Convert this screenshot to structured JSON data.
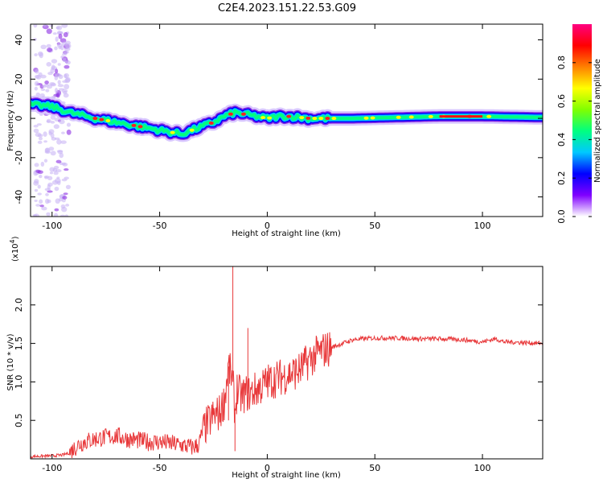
{
  "figure": {
    "title": "C2E4.2023.151.22.53.G09"
  },
  "chart_data": [
    {
      "type": "heatmap",
      "xlabel": "Height of straight line (km)",
      "ylabel": "Frequency (Hz)",
      "xlim": [
        -110,
        128
      ],
      "ylim": [
        -50,
        48
      ],
      "xticks": [
        -100,
        -50,
        0,
        50,
        100
      ],
      "yticks": [
        -40,
        -20,
        0,
        20,
        40
      ],
      "xtick_labels": [
        "-100",
        "-50",
        "0",
        "50",
        "100"
      ],
      "ytick_labels": [
        "-40",
        "-20",
        "0",
        "20",
        "40"
      ],
      "ridge": {
        "x": [
          -110,
          -100,
          -92,
          -80,
          -70,
          -60,
          -50,
          -45,
          -40,
          -35,
          -30,
          -25,
          -20,
          -15,
          -10,
          -5,
          0,
          5,
          10,
          20,
          40,
          60,
          80,
          100,
          128
        ],
        "y": [
          7,
          6,
          3,
          0,
          -2,
          -4,
          -6,
          -7,
          -8,
          -6,
          -4,
          -2,
          1,
          3,
          2,
          1,
          0,
          1,
          1,
          0,
          0,
          0.5,
          1,
          1,
          0.5
        ]
      },
      "scatter_region_x": [
        -108,
        -92
      ],
      "colorbar": {
        "label": "Normalized spectral amplitude",
        "range": [
          0,
          1
        ],
        "ticks": [
          0,
          0.2,
          0.4,
          0.6,
          0.8
        ],
        "tick_labels": [
          "0.0",
          "0.2",
          "0.4",
          "0.6",
          "0.8"
        ],
        "colors": [
          "#ffffff",
          "#8000ff",
          "#0000ff",
          "#00c8ff",
          "#00ff80",
          "#80ff00",
          "#ffff00",
          "#ff8000",
          "#ff0000",
          "#ff0080"
        ]
      }
    },
    {
      "type": "line",
      "xlabel": "Height of straight line (km)",
      "ylabel": "SNR (10 * v/v)",
      "y_multiplier": "(x10",
      "y_multiplier_exp": "4",
      "y_multiplier_close": ")",
      "xlim": [
        -110,
        128
      ],
      "ylim": [
        0,
        2.5
      ],
      "xticks": [
        -100,
        -50,
        0,
        50,
        100
      ],
      "yticks": [
        0.5,
        1.0,
        1.5,
        2.0
      ],
      "xtick_labels": [
        "-100",
        "-50",
        "0",
        "50",
        "100"
      ],
      "ytick_labels": [
        "0.5",
        "1.0",
        "1.5",
        "2.0"
      ],
      "series": [
        {
          "color": "#e8383a",
          "x": [
            -110,
            -100,
            -95,
            -92,
            -88,
            -85,
            -80,
            -75,
            -70,
            -65,
            -60,
            -55,
            -50,
            -45,
            -40,
            -35,
            -32,
            -30,
            -28,
            -25,
            -22,
            -20,
            -18,
            -16,
            -15,
            -14,
            -12,
            -10,
            -8,
            -5,
            -2,
            0,
            5,
            10,
            15,
            20,
            25,
            30,
            35,
            40,
            50,
            60,
            70,
            80,
            90,
            100,
            106,
            110,
            120,
            128
          ],
          "y": [
            0.03,
            0.04,
            0.05,
            0.08,
            0.18,
            0.22,
            0.26,
            0.28,
            0.3,
            0.26,
            0.24,
            0.22,
            0.22,
            0.2,
            0.18,
            0.15,
            0.18,
            0.35,
            0.45,
            0.55,
            0.6,
            0.75,
            1.2,
            1.0,
            0.6,
            0.9,
            0.8,
            0.85,
            0.85,
            0.9,
            0.95,
            1.0,
            1.05,
            1.1,
            1.15,
            1.3,
            1.4,
            1.45,
            1.5,
            1.55,
            1.57,
            1.57,
            1.56,
            1.56,
            1.55,
            1.52,
            1.56,
            1.52,
            1.51,
            1.5
          ]
        }
      ]
    }
  ]
}
